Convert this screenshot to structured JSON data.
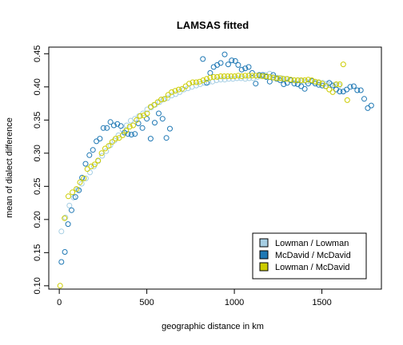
{
  "chart_data": {
    "type": "scatter",
    "title": "LAMSAS fitted",
    "xlabel": "geographic distance in km",
    "ylabel": "mean of dialect difference",
    "xlim": [
      -60,
      1840
    ],
    "ylim": [
      0.095,
      0.46
    ],
    "xticks": [
      0,
      500,
      1000,
      1500
    ],
    "yticks": [
      0.1,
      0.15,
      0.2,
      0.25,
      0.3,
      0.35,
      0.4,
      0.45
    ],
    "grid": false,
    "legend_position": "bottom-right",
    "series": [
      {
        "name": "Lowman / Lowman",
        "color": "#a6cee3",
        "points": [
          [
            12,
            0.182
          ],
          [
            35,
            0.203
          ],
          [
            58,
            0.221
          ],
          [
            82,
            0.233
          ],
          [
            105,
            0.245
          ],
          [
            128,
            0.254
          ],
          [
            152,
            0.262
          ],
          [
            175,
            0.271
          ],
          [
            198,
            0.28
          ],
          [
            222,
            0.288
          ],
          [
            245,
            0.296
          ],
          [
            268,
            0.303
          ],
          [
            292,
            0.312
          ],
          [
            315,
            0.319
          ],
          [
            338,
            0.327
          ],
          [
            362,
            0.335
          ],
          [
            385,
            0.342
          ],
          [
            408,
            0.349
          ],
          [
            432,
            0.352
          ],
          [
            455,
            0.356
          ],
          [
            478,
            0.36
          ],
          [
            502,
            0.366
          ],
          [
            525,
            0.369
          ],
          [
            548,
            0.373
          ],
          [
            572,
            0.377
          ],
          [
            595,
            0.381
          ],
          [
            618,
            0.383
          ],
          [
            642,
            0.387
          ],
          [
            665,
            0.389
          ],
          [
            688,
            0.392
          ],
          [
            712,
            0.396
          ],
          [
            735,
            0.398
          ],
          [
            758,
            0.4
          ],
          [
            782,
            0.402
          ],
          [
            805,
            0.404
          ],
          [
            828,
            0.406
          ],
          [
            852,
            0.407
          ],
          [
            875,
            0.408
          ],
          [
            898,
            0.41
          ],
          [
            922,
            0.411
          ],
          [
            945,
            0.411
          ],
          [
            968,
            0.412
          ],
          [
            992,
            0.412
          ],
          [
            1015,
            0.413
          ],
          [
            1038,
            0.413
          ],
          [
            1062,
            0.412
          ],
          [
            1085,
            0.413
          ],
          [
            1108,
            0.413
          ],
          [
            1132,
            0.415
          ],
          [
            1155,
            0.416
          ],
          [
            1178,
            0.418
          ],
          [
            1202,
            0.42
          ],
          [
            1225,
            0.415
          ],
          [
            1248,
            0.414
          ],
          [
            1272,
            0.413
          ],
          [
            1295,
            0.412
          ],
          [
            1318,
            0.411
          ],
          [
            1342,
            0.41
          ],
          [
            1365,
            0.41
          ],
          [
            1388,
            0.409
          ],
          [
            1412,
            0.408
          ],
          [
            1435,
            0.408
          ],
          [
            1458,
            0.407
          ],
          [
            1482,
            0.406
          ],
          [
            1505,
            0.406
          ],
          [
            1528,
            0.405
          ],
          [
            1552,
            0.404
          ],
          [
            1575,
            0.403
          ],
          [
            1598,
            0.402
          ]
        ]
      },
      {
        "name": "McDavid / McDavid",
        "color": "#1f78b4",
        "points": [
          [
            12,
            0.136
          ],
          [
            32,
            0.151
          ],
          [
            50,
            0.193
          ],
          [
            70,
            0.214
          ],
          [
            92,
            0.234
          ],
          [
            112,
            0.244
          ],
          [
            130,
            0.263
          ],
          [
            150,
            0.284
          ],
          [
            172,
            0.297
          ],
          [
            192,
            0.305
          ],
          [
            212,
            0.318
          ],
          [
            232,
            0.322
          ],
          [
            252,
            0.338
          ],
          [
            272,
            0.338
          ],
          [
            292,
            0.347
          ],
          [
            312,
            0.342
          ],
          [
            332,
            0.344
          ],
          [
            352,
            0.341
          ],
          [
            372,
            0.331
          ],
          [
            392,
            0.329
          ],
          [
            412,
            0.328
          ],
          [
            432,
            0.329
          ],
          [
            452,
            0.345
          ],
          [
            475,
            0.338
          ],
          [
            500,
            0.352
          ],
          [
            522,
            0.322
          ],
          [
            545,
            0.346
          ],
          [
            568,
            0.36
          ],
          [
            590,
            0.352
          ],
          [
            612,
            0.323
          ],
          [
            632,
            0.337
          ],
          [
            820,
            0.442
          ],
          [
            842,
            0.406
          ],
          [
            862,
            0.421
          ],
          [
            882,
            0.43
          ],
          [
            902,
            0.433
          ],
          [
            922,
            0.436
          ],
          [
            945,
            0.449
          ],
          [
            965,
            0.434
          ],
          [
            985,
            0.44
          ],
          [
            1005,
            0.439
          ],
          [
            1022,
            0.433
          ],
          [
            1042,
            0.426
          ],
          [
            1062,
            0.428
          ],
          [
            1082,
            0.43
          ],
          [
            1102,
            0.421
          ],
          [
            1122,
            0.405
          ],
          [
            1142,
            0.418
          ],
          [
            1162,
            0.418
          ],
          [
            1182,
            0.415
          ],
          [
            1202,
            0.408
          ],
          [
            1222,
            0.418
          ],
          [
            1242,
            0.412
          ],
          [
            1262,
            0.41
          ],
          [
            1282,
            0.404
          ],
          [
            1302,
            0.406
          ],
          [
            1322,
            0.41
          ],
          [
            1342,
            0.405
          ],
          [
            1362,
            0.404
          ],
          [
            1382,
            0.401
          ],
          [
            1402,
            0.397
          ],
          [
            1422,
            0.405
          ],
          [
            1442,
            0.409
          ],
          [
            1462,
            0.405
          ],
          [
            1482,
            0.403
          ],
          [
            1502,
            0.402
          ],
          [
            1522,
            0.401
          ],
          [
            1542,
            0.406
          ],
          [
            1562,
            0.402
          ],
          [
            1582,
            0.396
          ],
          [
            1602,
            0.393
          ],
          [
            1622,
            0.393
          ],
          [
            1642,
            0.396
          ],
          [
            1662,
            0.4
          ],
          [
            1682,
            0.401
          ],
          [
            1702,
            0.395
          ],
          [
            1722,
            0.395
          ],
          [
            1742,
            0.382
          ],
          [
            1762,
            0.368
          ],
          [
            1782,
            0.372
          ]
        ]
      },
      {
        "name": "Lowman / McDavid",
        "color": "#cccc00",
        "points": [
          [
            5,
            0.1
          ],
          [
            30,
            0.202
          ],
          [
            52,
            0.235
          ],
          [
            75,
            0.241
          ],
          [
            98,
            0.246
          ],
          [
            118,
            0.256
          ],
          [
            140,
            0.262
          ],
          [
            160,
            0.276
          ],
          [
            182,
            0.28
          ],
          [
            202,
            0.283
          ],
          [
            222,
            0.289
          ],
          [
            242,
            0.3
          ],
          [
            262,
            0.307
          ],
          [
            282,
            0.311
          ],
          [
            302,
            0.317
          ],
          [
            322,
            0.322
          ],
          [
            342,
            0.323
          ],
          [
            362,
            0.327
          ],
          [
            382,
            0.334
          ],
          [
            402,
            0.34
          ],
          [
            422,
            0.342
          ],
          [
            442,
            0.35
          ],
          [
            462,
            0.356
          ],
          [
            482,
            0.357
          ],
          [
            502,
            0.36
          ],
          [
            522,
            0.37
          ],
          [
            542,
            0.373
          ],
          [
            562,
            0.377
          ],
          [
            582,
            0.381
          ],
          [
            602,
            0.382
          ],
          [
            622,
            0.388
          ],
          [
            642,
            0.392
          ],
          [
            662,
            0.394
          ],
          [
            682,
            0.396
          ],
          [
            702,
            0.397
          ],
          [
            722,
            0.401
          ],
          [
            742,
            0.405
          ],
          [
            762,
            0.407
          ],
          [
            782,
            0.407
          ],
          [
            802,
            0.408
          ],
          [
            822,
            0.41
          ],
          [
            842,
            0.412
          ],
          [
            862,
            0.414
          ],
          [
            882,
            0.415
          ],
          [
            902,
            0.415
          ],
          [
            922,
            0.416
          ],
          [
            942,
            0.416
          ],
          [
            962,
            0.416
          ],
          [
            982,
            0.416
          ],
          [
            1002,
            0.416
          ],
          [
            1022,
            0.417
          ],
          [
            1042,
            0.416
          ],
          [
            1062,
            0.417
          ],
          [
            1082,
            0.417
          ],
          [
            1102,
            0.417
          ],
          [
            1122,
            0.417
          ],
          [
            1142,
            0.417
          ],
          [
            1162,
            0.416
          ],
          [
            1182,
            0.416
          ],
          [
            1202,
            0.415
          ],
          [
            1222,
            0.414
          ],
          [
            1242,
            0.413
          ],
          [
            1262,
            0.413
          ],
          [
            1282,
            0.412
          ],
          [
            1302,
            0.412
          ],
          [
            1322,
            0.411
          ],
          [
            1342,
            0.41
          ],
          [
            1362,
            0.41
          ],
          [
            1382,
            0.41
          ],
          [
            1402,
            0.41
          ],
          [
            1422,
            0.411
          ],
          [
            1442,
            0.41
          ],
          [
            1462,
            0.408
          ],
          [
            1482,
            0.407
          ],
          [
            1502,
            0.405
          ],
          [
            1522,
            0.401
          ],
          [
            1542,
            0.396
          ],
          [
            1562,
            0.392
          ],
          [
            1582,
            0.404
          ],
          [
            1602,
            0.404
          ],
          [
            1622,
            0.434
          ],
          [
            1645,
            0.38
          ]
        ]
      }
    ]
  }
}
